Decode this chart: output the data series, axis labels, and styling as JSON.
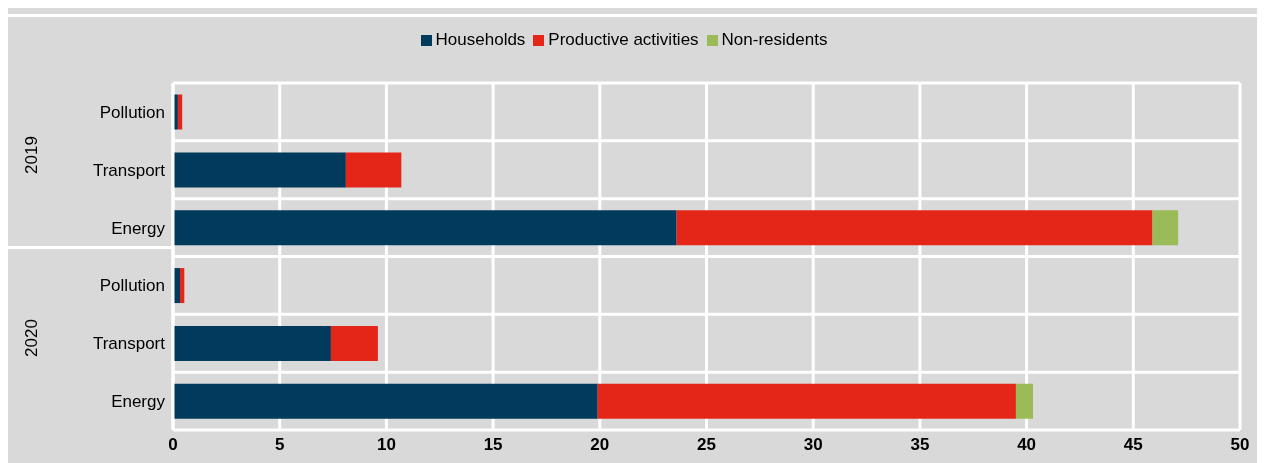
{
  "chart_data": {
    "type": "bar",
    "orientation": "horizontal",
    "stacked": true,
    "categories": [
      "Pollution",
      "Transport",
      "Energy",
      "Pollution",
      "Transport",
      "Energy"
    ],
    "series": [
      {
        "name": "Households",
        "color": "#003a5d",
        "values": [
          0.23,
          8.1,
          23.6,
          0.33,
          7.4,
          19.9
        ]
      },
      {
        "name": "Productive activities",
        "color": "#e42618",
        "values": [
          0.2,
          2.6,
          22.3,
          0.2,
          2.2,
          19.6
        ]
      },
      {
        "name": "Non-residents",
        "color": "#9bbb59",
        "values": [
          null,
          null,
          1.2,
          null,
          null,
          0.8
        ]
      }
    ],
    "annotations": [
      "2019",
      "2020"
    ],
    "xlim": [
      0,
      50
    ],
    "xticks": [
      0,
      5,
      10,
      15,
      20,
      25,
      30,
      35,
      40,
      45,
      50
    ],
    "grid": true,
    "legend": "top"
  }
}
